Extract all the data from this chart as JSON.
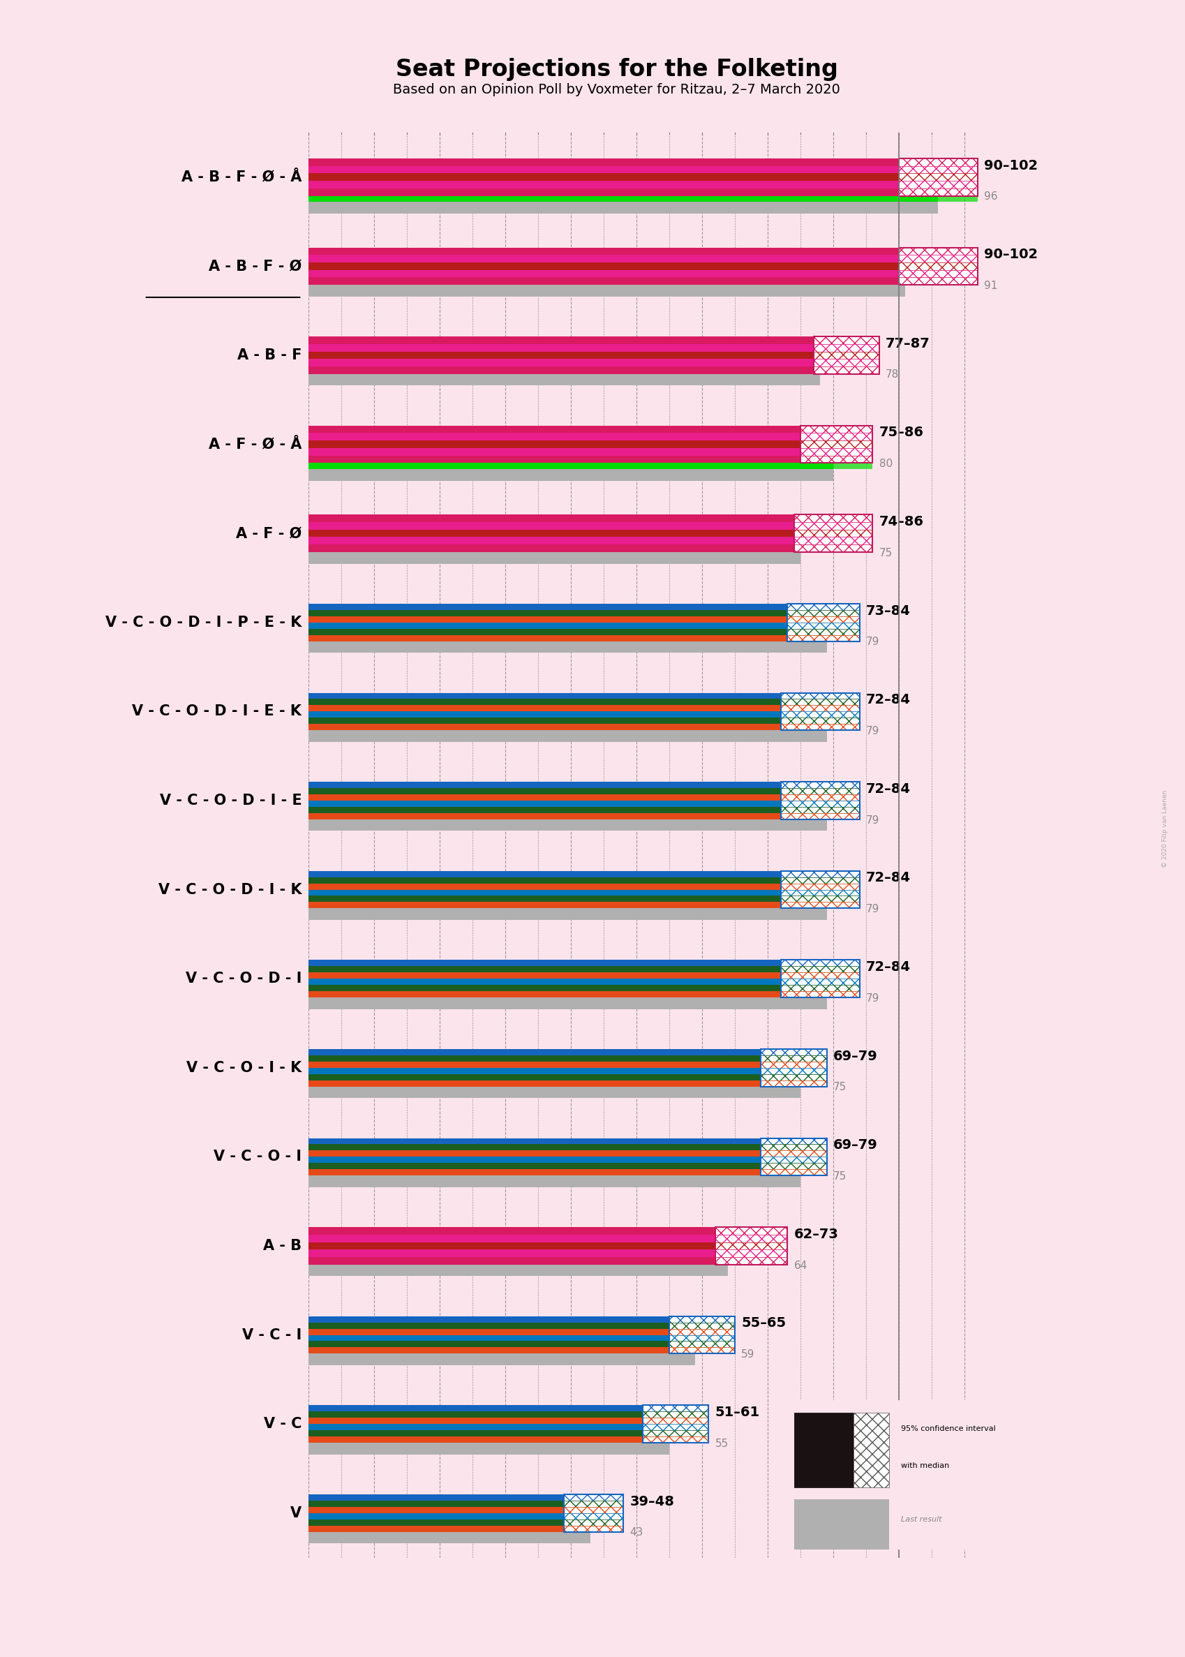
{
  "title": "Seat Projections for the Folketing",
  "subtitle": "Based on an Opinion Poll by Voxmeter for Ritzau, 2–7 March 2020",
  "background_color": "#fce4ec",
  "majority_line": 90,
  "x_max": 103,
  "rows": [
    {
      "label": "A - B - F - Ø - Å",
      "ci_low": 90,
      "ci_high": 102,
      "median": 96,
      "last": 96,
      "underline": false,
      "type": "left",
      "has_green": true
    },
    {
      "label": "A - B - F - Ø",
      "ci_low": 90,
      "ci_high": 102,
      "median": 91,
      "last": 91,
      "underline": true,
      "type": "left",
      "has_green": false
    },
    {
      "label": "A - B - F",
      "ci_low": 77,
      "ci_high": 87,
      "median": 78,
      "last": 78,
      "underline": false,
      "type": "left",
      "has_green": false
    },
    {
      "label": "A - F - Ø - Å",
      "ci_low": 75,
      "ci_high": 86,
      "median": 80,
      "last": 80,
      "underline": false,
      "type": "left",
      "has_green": true
    },
    {
      "label": "A - F - Ø",
      "ci_low": 74,
      "ci_high": 86,
      "median": 75,
      "last": 75,
      "underline": false,
      "type": "left",
      "has_green": false
    },
    {
      "label": "V - C - O - D - I - P - E - K",
      "ci_low": 73,
      "ci_high": 84,
      "median": 79,
      "last": 79,
      "underline": false,
      "type": "right",
      "has_green": false
    },
    {
      "label": "V - C - O - D - I - E - K",
      "ci_low": 72,
      "ci_high": 84,
      "median": 79,
      "last": 79,
      "underline": false,
      "type": "right",
      "has_green": false
    },
    {
      "label": "V - C - O - D - I - E",
      "ci_low": 72,
      "ci_high": 84,
      "median": 79,
      "last": 79,
      "underline": false,
      "type": "right",
      "has_green": false
    },
    {
      "label": "V - C - O - D - I - K",
      "ci_low": 72,
      "ci_high": 84,
      "median": 79,
      "last": 79,
      "underline": false,
      "type": "right",
      "has_green": false
    },
    {
      "label": "V - C - O - D - I",
      "ci_low": 72,
      "ci_high": 84,
      "median": 79,
      "last": 79,
      "underline": false,
      "type": "right",
      "has_green": false
    },
    {
      "label": "V - C - O - I - K",
      "ci_low": 69,
      "ci_high": 79,
      "median": 75,
      "last": 75,
      "underline": false,
      "type": "right",
      "has_green": false
    },
    {
      "label": "V - C - O - I",
      "ci_low": 69,
      "ci_high": 79,
      "median": 75,
      "last": 75,
      "underline": false,
      "type": "right",
      "has_green": false
    },
    {
      "label": "A - B",
      "ci_low": 62,
      "ci_high": 73,
      "median": 64,
      "last": 64,
      "underline": false,
      "type": "left",
      "has_green": false
    },
    {
      "label": "V - C - I",
      "ci_low": 55,
      "ci_high": 65,
      "median": 59,
      "last": 59,
      "underline": false,
      "type": "right",
      "has_green": false
    },
    {
      "label": "V - C",
      "ci_low": 51,
      "ci_high": 61,
      "median": 55,
      "last": 55,
      "underline": false,
      "type": "right",
      "has_green": false
    },
    {
      "label": "V",
      "ci_low": 39,
      "ci_high": 48,
      "median": 43,
      "last": 43,
      "underline": false,
      "type": "right",
      "has_green": false
    }
  ],
  "left_stripe_colors": [
    "#d81b60",
    "#e91e8c",
    "#b71c1c",
    "#e91e8c",
    "#d81b60"
  ],
  "right_stripe_colors": [
    "#1565c0",
    "#1b5e20",
    "#e64a19",
    "#0277bd",
    "#1b5e20",
    "#e64a19"
  ],
  "ci_hatch": "xx",
  "last_result_color": "#b0b0b0",
  "majority_color": "#888888",
  "green_color": "#00dd00",
  "label_fontsize": 15,
  "annot_fontsize": 14,
  "median_fontsize": 11,
  "title_fontsize": 24,
  "subtitle_fontsize": 14
}
